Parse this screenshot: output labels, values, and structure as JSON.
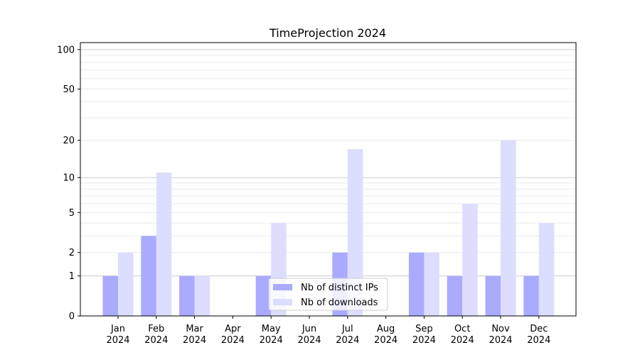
{
  "chart_data": {
    "type": "bar",
    "title": "TimeProjection 2024",
    "xlabel": "",
    "ylabel": "",
    "yscale": "log(1+y)",
    "ylim": [
      0,
      113
    ],
    "yticks": [
      0,
      1,
      2,
      5,
      10,
      20,
      50,
      100
    ],
    "grid": true,
    "legend_position": "lower-center",
    "categories": [
      "Jan\n2024",
      "Feb\n2024",
      "Mar\n2024",
      "Apr\n2024",
      "May\n2024",
      "Jun\n2024",
      "Jul\n2024",
      "Aug\n2024",
      "Sep\n2024",
      "Oct\n2024",
      "Nov\n2024",
      "Dec\n2024"
    ],
    "series": [
      {
        "name": "Nb of distinct IPs",
        "color": "#aaaaff",
        "values": [
          1,
          3,
          1,
          0,
          1,
          0,
          2,
          0,
          2,
          1,
          1,
          1
        ]
      },
      {
        "name": "Nb of downloads",
        "color": "#ddddff",
        "values": [
          2,
          11,
          1,
          0,
          4,
          0,
          17,
          0,
          2,
          6,
          20,
          4
        ]
      }
    ]
  }
}
